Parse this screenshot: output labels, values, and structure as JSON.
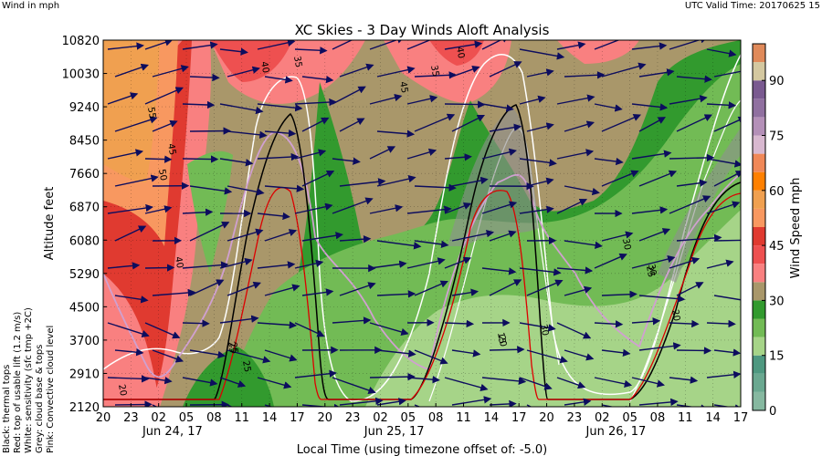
{
  "header": {
    "left_note": "Wind in mph",
    "right_note": "UTC Valid Time: 20170625 15"
  },
  "colors": {
    "wind_arrow": "#0d0d5e",
    "thermal_tops": "#000000",
    "usable_lift": "#dd0000",
    "sensitivity": "#ffffff",
    "cloud_base": "#808080",
    "convective_cloud": "#d0a0d0"
  },
  "chart_data": {
    "type": "heatmap",
    "title": "XC Skies - 3 Day Winds Aloft Analysis",
    "xlabel": "Local Time (using timezone offset of: -5.0)",
    "ylabel": "Altitude feet",
    "x_tick_labels": [
      "20",
      "23",
      "02",
      "05",
      "08",
      "11",
      "14",
      "17",
      "20",
      "23",
      "02",
      "05",
      "08",
      "11",
      "14",
      "17",
      "20",
      "23",
      "02",
      "05",
      "08",
      "11",
      "14",
      "17"
    ],
    "date_labels": [
      {
        "label": "Jun 24, 17",
        "at_tick": 2
      },
      {
        "label": "Jun 25, 17",
        "at_tick": 10
      },
      {
        "label": "Jun 26, 17",
        "at_tick": 18
      }
    ],
    "y_tick_labels": [
      "2120",
      "2910",
      "3700",
      "4500",
      "5290",
      "6080",
      "6870",
      "7660",
      "8450",
      "9240",
      "10030",
      "10820"
    ],
    "ylim": [
      2120,
      10820
    ],
    "grid": true,
    "colorbar": {
      "label": "Wind Speed mph",
      "range": [
        0,
        100
      ],
      "tick_labels": [
        "0",
        "15",
        "30",
        "45",
        "60",
        "75",
        "90"
      ],
      "tick_values": [
        0,
        15,
        30,
        45,
        60,
        75,
        90
      ],
      "bands": [
        {
          "from": 0,
          "to": 5,
          "color": "#86b8a0"
        },
        {
          "from": 5,
          "to": 10,
          "color": "#6aa890"
        },
        {
          "from": 10,
          "to": 15,
          "color": "#4e9880"
        },
        {
          "from": 15,
          "to": 20,
          "color": "#a6d488"
        },
        {
          "from": 20,
          "to": 25,
          "color": "#72bb55"
        },
        {
          "from": 25,
          "to": 30,
          "color": "#329a2e"
        },
        {
          "from": 30,
          "to": 35,
          "color": "#a9976a"
        },
        {
          "from": 35,
          "to": 40,
          "color": "#f98080"
        },
        {
          "from": 40,
          "to": 45,
          "color": "#ee5050"
        },
        {
          "from": 45,
          "to": 50,
          "color": "#e03a30"
        },
        {
          "from": 50,
          "to": 55,
          "color": "#f89860"
        },
        {
          "from": 55,
          "to": 60,
          "color": "#f0a050"
        },
        {
          "from": 60,
          "to": 65,
          "color": "#ff8000"
        },
        {
          "from": 65,
          "to": 70,
          "color": "#f08858"
        },
        {
          "from": 70,
          "to": 75,
          "color": "#d8b8d0"
        },
        {
          "from": 75,
          "to": 80,
          "color": "#b490b8"
        },
        {
          "from": 80,
          "to": 85,
          "color": "#9070a0"
        },
        {
          "from": 85,
          "to": 90,
          "color": "#7a5a90"
        },
        {
          "from": 90,
          "to": 95,
          "color": "#d4c8a0"
        },
        {
          "from": 95,
          "to": 100,
          "color": "#e08a5a"
        }
      ]
    },
    "contour_labels": [
      "55",
      "45",
      "50",
      "40",
      "40",
      "35",
      "45",
      "40",
      "35",
      "30",
      "25",
      "20",
      "30",
      "25",
      "25",
      "20",
      "30",
      "25",
      "20",
      "15"
    ],
    "legend": [
      "Black: thermal tops",
      "Red: top of usable lift (1.2 m/s)",
      "White: sensitivity (sfc tmp +2C)",
      "Grey: cloud base & tops",
      "Pink: Convective cloud level"
    ]
  }
}
